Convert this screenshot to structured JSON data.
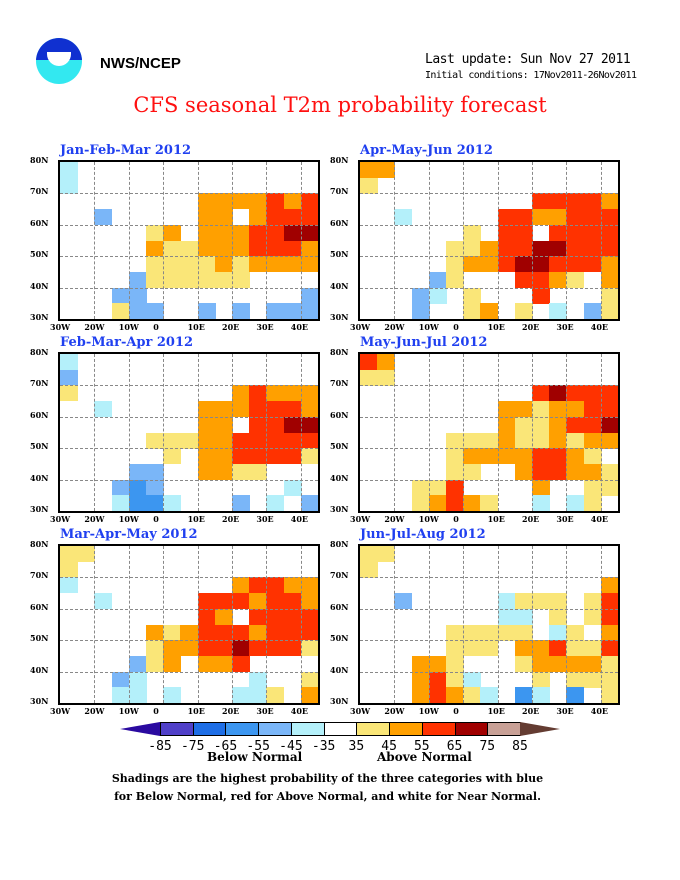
{
  "header": {
    "org": "NWS/NCEP",
    "last_update": "Last update: Sun Nov 27 2011",
    "initial_conditions": "Initial conditions: 17Nov2011-26Nov2011",
    "title": "CFS seasonal T2m probability forecast",
    "logo": "noaa-logo"
  },
  "map_axes": {
    "lon_labels": [
      "30W",
      "20W",
      "10W",
      "0",
      "10E",
      "20E",
      "30E",
      "40E"
    ],
    "lat_labels": [
      "80N",
      "70N",
      "60N",
      "50N",
      "40N",
      "30N"
    ],
    "lon_range": [
      -30,
      45
    ],
    "lat_range": [
      30,
      80
    ],
    "grid_spacing_deg": 10
  },
  "legend": {
    "labels": [
      "-85",
      "-75",
      "-65",
      "-55",
      "-45",
      "-35",
      "35",
      "45",
      "55",
      "65",
      "75",
      "85"
    ],
    "colors": [
      "#2a0aa0",
      "#5040c8",
      "#1e6ee6",
      "#3c96f0",
      "#7ab6f8",
      "#b4f0fa",
      "#ffffff",
      "#fae678",
      "#ffa000",
      "#ff3200",
      "#a00000",
      "#c8a096",
      "#643c32"
    ],
    "below": "Below Normal",
    "above": "Above Normal"
  },
  "notes": [
    "Shadings are the highest probability of the three categories with blue",
    "for Below Normal, red for Above Normal, and white for Near Normal."
  ],
  "category_colors": {
    "l": "#b4f0fa",
    "m": "#7ab6f8",
    "n": "#3c96f0",
    "y": "#fae678",
    "o": "#ffa000",
    "r": "#ff3200",
    "d": "#a00000"
  },
  "panels": [
    {
      "title": "Jan-Feb-Mar 2012",
      "grid": [
        "l..............",
        "l..............",
        "........ooooror",
        "..m.....oo.orrr",
        ".....yo.ooorrdd",
        ".....oyyooorrro",
        ".....yyyyoyoooo",
        "....myyyyyy....",
        "...mm.........m",
        "...ymm..m.m.mmm"
      ]
    },
    {
      "title": "Apr-May-Jun 2012",
      "grid": [
        "oo.............",
        "y..............",
        "..........rrrro",
        "..l.....rroorrr",
        "......y.rr.rrrr",
        ".....yyorrddrrr",
        ".....yoorddrrro",
        "....my...rroy.o",
        "...ml.y...r...y",
        "...m..yo.y.l.my"
      ]
    },
    {
      "title": "Feb-Mar-Apr 2012",
      "grid": [
        "l..............",
        "m..............",
        "y.........orooo",
        "..l.....ooorrro",
        "........oo.rrdd",
        ".....yyyoorrrrr",
        "......y.oorrrry",
        "....mm..ooyy...",
        "...mnm.......l.",
        "...lnnl...m.l.m"
      ]
    },
    {
      "title": "May-Jun-Jul 2012",
      "grid": [
        "ro.............",
        "yy.............",
        "..........rdrrr",
        "........ooyoorr",
        "........oyyorrd",
        ".....yyyoyyoyoo",
        ".....yoooorroy.",
        ".....yy..orrooy",
        "...yyr....o..yy",
        "...yoroy..l.ly."
      ]
    },
    {
      "title": "Mar-Apr-May 2012",
      "grid": [
        "yy.............",
        "y..............",
        "l.........orroo",
        "..l.....rrrorro",
        "........ro.rrrr",
        ".....oyorrrorrr",
        ".....yoorrdrrry",
        "....myo.oor....",
        "...ml......l..y",
        "...ll.l...lly.o"
      ]
    },
    {
      "title": "Jun-Jul-Aug 2012",
      "grid": [
        "yy.............",
        "y..............",
        "..............o",
        "..m.....lyyy.yr",
        "........ll.y.yr",
        ".....yyyyy.ly.o",
        ".....yyy.ooryyr",
        "...ooy...yooooy",
        "...oryl...y.yyy",
        "...oroyl.nl.n.y"
      ]
    }
  ]
}
